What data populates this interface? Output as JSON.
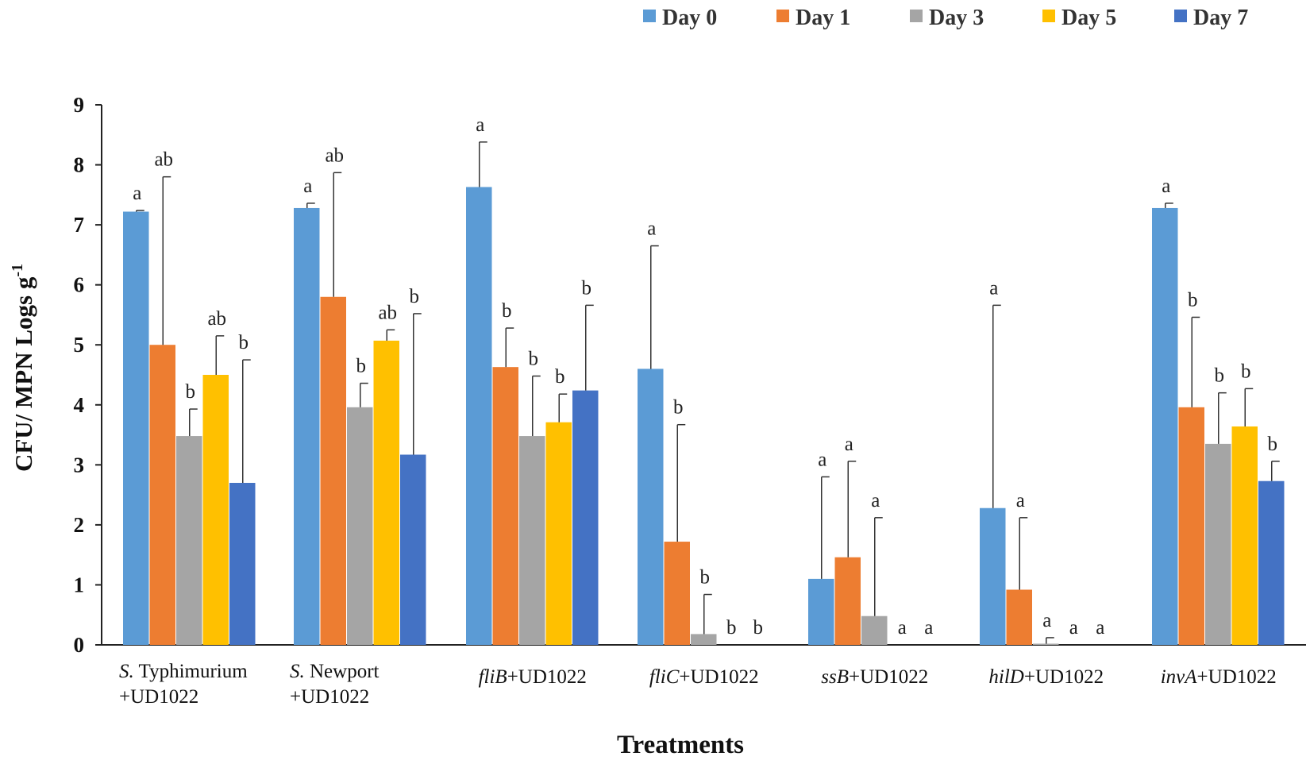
{
  "chart_data": {
    "type": "bar",
    "title": "",
    "xlabel": "Treatments",
    "ylabel": "CFU/ MPN Logs g",
    "ylabel_superscript": "-1",
    "ylim": [
      0,
      9
    ],
    "yticks": [
      "0",
      "1",
      "2",
      "3",
      "4",
      "5",
      "6",
      "7",
      "8",
      "9"
    ],
    "legend_position": "top-right",
    "categories": [
      {
        "italic": "S.",
        "plain": " Typhimurium",
        "line2": "+UD1022"
      },
      {
        "italic": "S.",
        "plain": " Newport",
        "line2": "+UD1022"
      },
      {
        "italic": "fliB",
        "plain": "+UD1022",
        "line2": ""
      },
      {
        "italic": "fliC",
        "plain": "+UD1022",
        "line2": ""
      },
      {
        "italic": "ssB",
        "plain": "+UD1022",
        "line2": ""
      },
      {
        "italic": "hilD",
        "plain": "+UD1022",
        "line2": ""
      },
      {
        "italic": "invA",
        "plain": "+UD1022",
        "line2": ""
      }
    ],
    "series": [
      {
        "name": "Day 0",
        "color": "#5B9BD5",
        "values": [
          7.22,
          7.28,
          7.63,
          4.6,
          1.1,
          2.28,
          7.28
        ],
        "errors": [
          0.02,
          0.08,
          0.75,
          2.05,
          1.7,
          3.38,
          0.08
        ],
        "labels": [
          "a",
          "a",
          "a",
          "a",
          "a",
          "a",
          "a"
        ]
      },
      {
        "name": "Day 1",
        "color": "#ED7D31",
        "values": [
          5.0,
          5.8,
          4.63,
          1.72,
          1.46,
          0.92,
          3.96
        ],
        "errors": [
          2.8,
          2.07,
          0.65,
          1.95,
          1.6,
          1.2,
          1.5
        ],
        "labels": [
          "ab",
          "ab",
          "b",
          "b",
          "a",
          "a",
          "b"
        ]
      },
      {
        "name": "Day 3",
        "color": "#A5A5A5",
        "values": [
          3.48,
          3.96,
          3.48,
          0.18,
          0.48,
          0.02,
          3.35
        ],
        "errors": [
          0.45,
          0.4,
          1.0,
          0.66,
          1.64,
          0.1,
          0.85
        ],
        "labels": [
          "b",
          "b",
          "b",
          "b",
          "a",
          "a",
          "b"
        ]
      },
      {
        "name": "Day 5",
        "color": "#FFC000",
        "values": [
          4.5,
          5.07,
          3.71,
          0.0,
          0.0,
          0.0,
          3.64
        ],
        "errors": [
          0.65,
          0.18,
          0.47,
          0.0,
          0.0,
          0.0,
          0.63
        ],
        "labels": [
          "ab",
          "ab",
          "b",
          "b",
          "a",
          "a",
          "b"
        ]
      },
      {
        "name": "Day 7",
        "color": "#4472C4",
        "values": [
          2.7,
          3.17,
          4.24,
          0.0,
          0.0,
          0.0,
          2.73
        ],
        "errors": [
          2.05,
          2.35,
          1.42,
          0.0,
          0.0,
          0.0,
          0.33
        ],
        "labels": [
          "b",
          "b",
          "b",
          "b",
          "a",
          "a",
          "b"
        ]
      }
    ]
  }
}
